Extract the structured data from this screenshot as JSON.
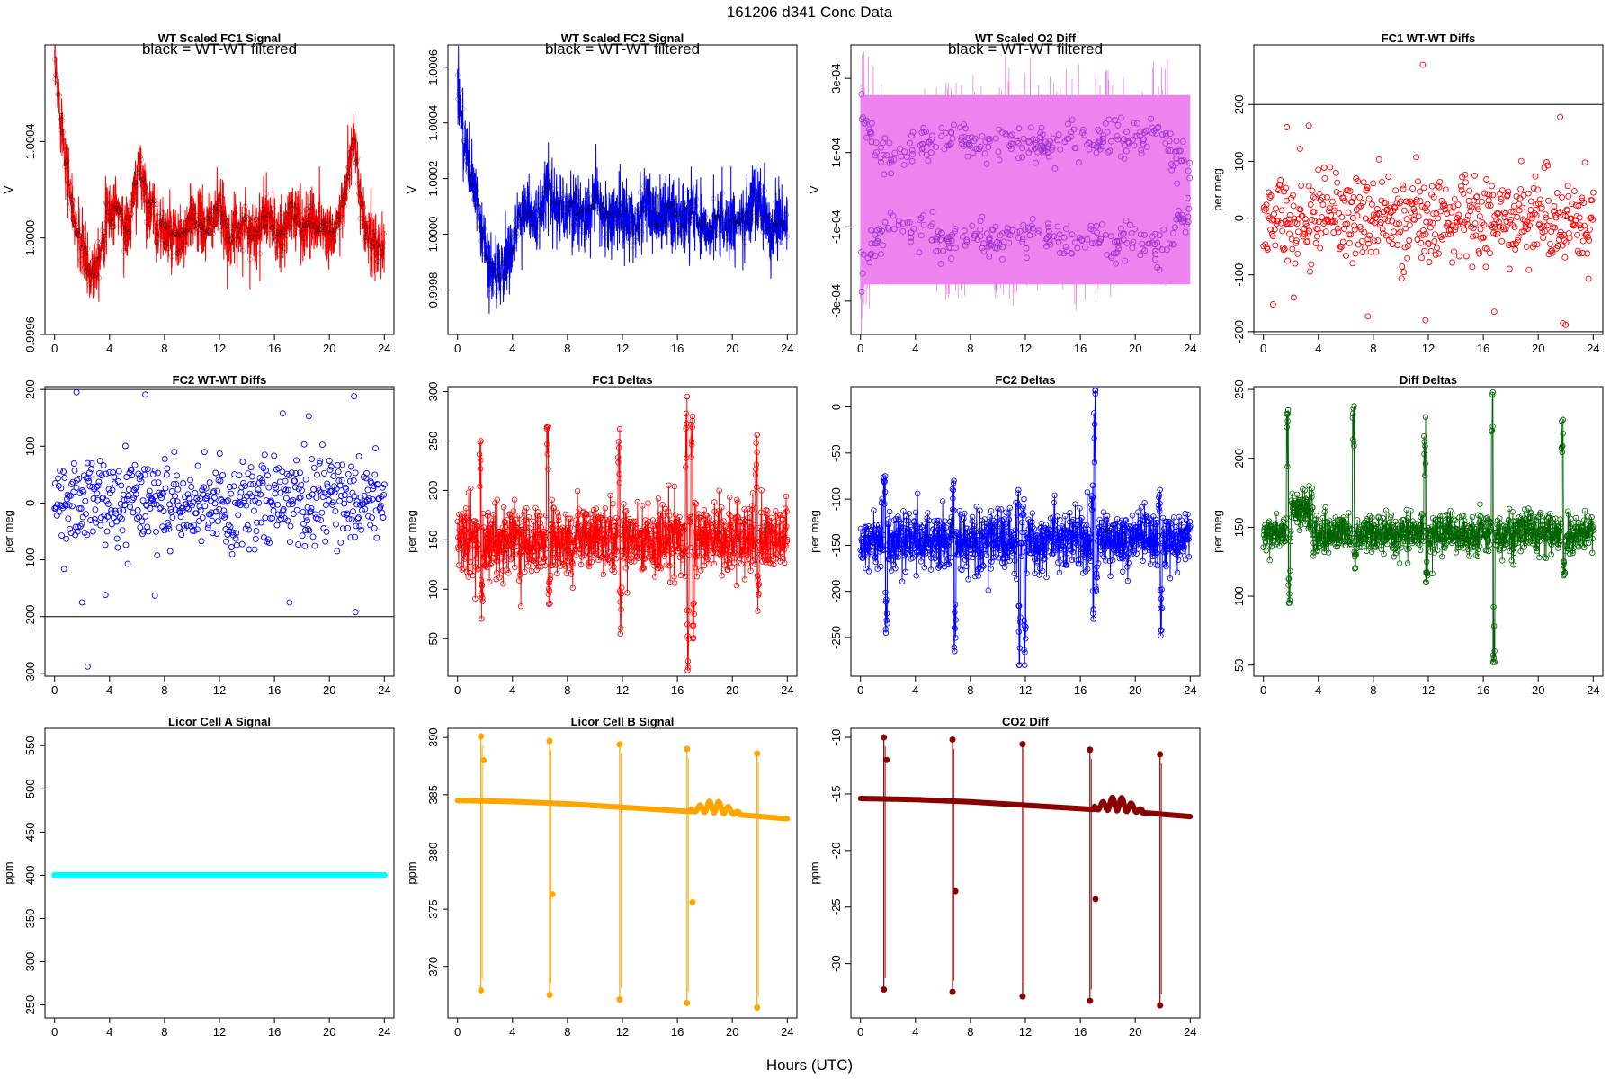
{
  "page": {
    "title": "161206   d341   Conc Data",
    "xlabel": "Hours (UTC)"
  },
  "chart_data": [
    {
      "id": "fc1-signal",
      "type": "line",
      "title": "WT Scaled FC1 Signal",
      "subtitle": "black = WT-WT filtered",
      "ylabel": "V",
      "color": "#ff0000",
      "overlay_color": "#000000",
      "style": "dense-noise",
      "xlim": [
        -0.7,
        24.7
      ],
      "ylim": [
        0.9996,
        1.0008
      ],
      "x_ticks": [
        0,
        4,
        8,
        12,
        16,
        20,
        24
      ],
      "y_ticks": [
        0.9996,
        1.0,
        1.0004
      ],
      "y_tick_labels": [
        "0.9996",
        "1.0000",
        "1.0004"
      ],
      "series_x": [
        0,
        0.3,
        0.8,
        1.3,
        2,
        2.6,
        3.2,
        3.8,
        4.5,
        5.3,
        6.2,
        6.9,
        7.6,
        8.5,
        9.3,
        10.2,
        11,
        11.9,
        12.8,
        13.7,
        14.6,
        15.5,
        16.4,
        17.3,
        18.2,
        19.1,
        20,
        20.9,
        21.8,
        22.4,
        23,
        23.5,
        24
      ],
      "series_y": [
        1.0007,
        1.00058,
        1.00035,
        1.0001,
        0.99995,
        0.99985,
        0.99993,
        1.00008,
        1.00014,
        1.00002,
        1.0003,
        1.00012,
        1.00005,
        1.0,
        0.99998,
        1.0001,
        1.00003,
        1.00012,
        1.0,
        1.00006,
        1.00002,
        1.0001,
        0.99998,
        1.00012,
        1.00004,
        1.00008,
        1.00001,
        1.0001,
        1.00042,
        1.00005,
        1.0,
        0.99994,
        0.99998
      ],
      "noise": 0.00012
    },
    {
      "id": "fc2-signal",
      "type": "line",
      "title": "WT Scaled FC2 Signal",
      "subtitle": "black = WT-WT filtered",
      "ylabel": "V",
      "color": "#0000ff",
      "overlay_color": "#000000",
      "style": "dense-noise",
      "xlim": [
        -0.7,
        24.7
      ],
      "ylim": [
        0.99964,
        1.00068
      ],
      "x_ticks": [
        0,
        4,
        8,
        12,
        16,
        20,
        24
      ],
      "y_ticks": [
        0.9998,
        1.0,
        1.0002,
        1.0004,
        1.0006
      ],
      "y_tick_labels": [
        "0.9998",
        "1.0000",
        "1.0002",
        "1.0004",
        "1.0006"
      ],
      "series_x": [
        0,
        0.3,
        0.8,
        1.5,
        2.2,
        2.8,
        3.4,
        4.2,
        5,
        5.8,
        6.6,
        7.4,
        8.3,
        9.2,
        10.1,
        11,
        11.9,
        12.8,
        13.7,
        14.6,
        15.5,
        16.4,
        17.3,
        18.2,
        19.1,
        20,
        20.9,
        21.8,
        22.6,
        23.3,
        24
      ],
      "series_y": [
        1.00055,
        1.0004,
        1.00025,
        1.00008,
        0.9999,
        0.99985,
        0.99988,
        1.0,
        1.0001,
        1.00004,
        1.00018,
        1.00008,
        1.0001,
        1.00006,
        1.00012,
        1.00004,
        1.0001,
        1.00002,
        1.00012,
        1.00005,
        1.0001,
        1.00004,
        1.00008,
        1.00003,
        1.00006,
        1.00002,
        1.00005,
        1.00014,
        1.00002,
        1.00003,
        1.00004
      ],
      "noise": 0.00011
    },
    {
      "id": "o2-diff",
      "type": "line",
      "title": "WT Scaled O2 Diff",
      "subtitle": "black = WT-WT filtered",
      "ylabel": "V",
      "color": "#ee82ee",
      "overlay_color": "#9932cc",
      "style": "band",
      "xlim": [
        -0.7,
        24.7
      ],
      "ylim": [
        -0.00039,
        0.00039
      ],
      "x_ticks": [
        0,
        4,
        8,
        12,
        16,
        20,
        24
      ],
      "y_ticks": [
        -0.0003,
        -0.0001,
        0.0001,
        0.0003
      ],
      "y_tick_labels": [
        "-3e-04",
        "-1e-04",
        "1e-04",
        "3e-04"
      ],
      "series_x": [
        0,
        0.4,
        1,
        2,
        3,
        4,
        5,
        6,
        7,
        8,
        9,
        10,
        11,
        12,
        13,
        14,
        15,
        16,
        17,
        18,
        19,
        20,
        21,
        22,
        23,
        24
      ],
      "series_y": [
        0.0003,
        0.00024,
        0.00018,
        0.00012,
        0.00013,
        0.00016,
        0.00015,
        0.00019,
        0.0002,
        0.00017,
        0.00016,
        0.00019,
        0.00018,
        0.00015,
        0.00017,
        0.00016,
        0.00019,
        0.00018,
        0.00016,
        0.0002,
        0.00018,
        0.00016,
        0.00019,
        0.00021,
        0.00012,
        0.0001
      ],
      "noise": 5e-05
    },
    {
      "id": "fc1-wtwt",
      "type": "scatter",
      "title": "FC1 WT-WT Diffs",
      "ylabel": "per meg",
      "color": "#ff0000",
      "style": "scatter",
      "xlim": [
        -0.7,
        24.7
      ],
      "ylim": [
        -205,
        305
      ],
      "x_ticks": [
        0,
        4,
        8,
        12,
        16,
        20,
        24
      ],
      "y_ticks": [
        -200,
        -100,
        0,
        100,
        200
      ],
      "y_tick_labels": [
        "-200",
        "-100",
        "0",
        "100",
        "200"
      ],
      "hlines": [
        200,
        -200
      ],
      "count": 560,
      "spread": 38,
      "outliers": [
        [
          11.6,
          270
        ],
        [
          21.6,
          178
        ],
        [
          1.7,
          160
        ],
        [
          3.3,
          163
        ],
        [
          2.2,
          -140
        ],
        [
          0.7,
          -152
        ],
        [
          11.8,
          -180
        ],
        [
          21.8,
          -185
        ],
        [
          22.0,
          -188
        ],
        [
          7.6,
          -173
        ],
        [
          16.8,
          -165
        ]
      ]
    },
    {
      "id": "fc2-wtwt",
      "type": "scatter",
      "title": "FC2 WT-WT Diffs",
      "ylabel": "per meg",
      "color": "#0000ff",
      "style": "scatter",
      "xlim": [
        -0.7,
        24.7
      ],
      "ylim": [
        -305,
        205
      ],
      "x_ticks": [
        0,
        4,
        8,
        12,
        16,
        20,
        24
      ],
      "y_ticks": [
        -300,
        -200,
        -100,
        0,
        100,
        200
      ],
      "y_tick_labels": [
        "-300",
        "-200",
        "-100",
        "0",
        "100",
        "200"
      ],
      "hlines": [
        200,
        -200
      ],
      "count": 560,
      "spread": 38,
      "outliers": [
        [
          1.6,
          195
        ],
        [
          6.6,
          191
        ],
        [
          21.8,
          188
        ],
        [
          16.6,
          158
        ],
        [
          18.5,
          153
        ],
        [
          2.4,
          -288
        ],
        [
          21.9,
          -192
        ],
        [
          2.0,
          -175
        ],
        [
          17.1,
          -175
        ],
        [
          7.3,
          -163
        ],
        [
          3.7,
          -162
        ]
      ]
    },
    {
      "id": "fc1-deltas",
      "type": "line",
      "title": "FC1 Deltas",
      "ylabel": "per meg",
      "color": "#ff0000",
      "style": "points-lines",
      "xlim": [
        -0.7,
        24.7
      ],
      "ylim": [
        12,
        305
      ],
      "x_ticks": [
        0,
        4,
        8,
        12,
        16,
        20,
        24
      ],
      "y_ticks": [
        50,
        100,
        150,
        200,
        250,
        300
      ],
      "y_tick_labels": [
        "50",
        "100",
        "150",
        "200",
        "250",
        "300"
      ],
      "base": 150,
      "noise": 18,
      "spikes": [
        [
          1.7,
          250,
          70
        ],
        [
          6.6,
          265,
          85
        ],
        [
          11.8,
          262,
          55
        ],
        [
          16.7,
          295,
          18
        ],
        [
          17.1,
          275,
          50
        ],
        [
          21.8,
          256,
          78
        ]
      ]
    },
    {
      "id": "fc2-deltas",
      "type": "line",
      "title": "FC2 Deltas",
      "ylabel": "per meg",
      "color": "#0000ff",
      "style": "points-lines",
      "xlim": [
        -0.7,
        24.7
      ],
      "ylim": [
        -292,
        22
      ],
      "x_ticks": [
        0,
        4,
        8,
        12,
        16,
        20,
        24
      ],
      "y_ticks": [
        -250,
        -200,
        -150,
        -100,
        -50,
        0
      ],
      "y_tick_labels": [
        "-250",
        "-200",
        "-150",
        "-100",
        "-50",
        "0"
      ],
      "base": -145,
      "noise": 16,
      "spikes": [
        [
          1.8,
          -75,
          -245
        ],
        [
          6.8,
          -80,
          -265
        ],
        [
          11.5,
          -90,
          -280
        ],
        [
          11.9,
          -100,
          -280
        ],
        [
          16.9,
          -85,
          -230
        ],
        [
          17.1,
          18,
          -200
        ],
        [
          21.8,
          -90,
          -248
        ]
      ]
    },
    {
      "id": "diff-deltas",
      "type": "line",
      "title": "Diff Deltas",
      "ylabel": "per meg",
      "color": "#006400",
      "style": "points-lines",
      "xlim": [
        -0.7,
        24.7
      ],
      "ylim": [
        42,
        252
      ],
      "x_ticks": [
        0,
        4,
        8,
        12,
        16,
        20,
        24
      ],
      "y_ticks": [
        50,
        100,
        150,
        200,
        250
      ],
      "y_tick_labels": [
        "50",
        "100",
        "150",
        "200",
        "250"
      ],
      "base": 145,
      "noise": 7,
      "spikes": [
        [
          1.8,
          235,
          95
        ],
        [
          6.6,
          238,
          120
        ],
        [
          11.8,
          230,
          110
        ],
        [
          16.7,
          248,
          52
        ],
        [
          21.8,
          228,
          115
        ]
      ]
    },
    {
      "id": "licor-a",
      "type": "line",
      "title": "Licor Cell A Signal",
      "ylabel": "ppm",
      "color": "#00ffff",
      "style": "flat",
      "xlim": [
        -0.7,
        24.7
      ],
      "ylim": [
        235,
        570
      ],
      "x_ticks": [
        0,
        4,
        8,
        12,
        16,
        20,
        24
      ],
      "y_ticks": [
        250,
        300,
        350,
        400,
        450,
        500,
        550
      ],
      "y_tick_labels": [
        "250",
        "300",
        "350",
        "400",
        "450",
        "500",
        "550"
      ],
      "value": 400
    },
    {
      "id": "licor-b",
      "type": "line",
      "title": "Licor Cell B Signal",
      "ylabel": "ppm",
      "color": "#ffa500",
      "style": "trend-spikes",
      "xlim": [
        -0.7,
        24.7
      ],
      "ylim": [
        365.5,
        390.8
      ],
      "x_ticks": [
        0,
        4,
        8,
        12,
        16,
        20,
        24
      ],
      "y_ticks": [
        370,
        375,
        380,
        385,
        390
      ],
      "y_tick_labels": [
        "370",
        "375",
        "380",
        "385",
        "390"
      ],
      "trend": [
        [
          0,
          384.5
        ],
        [
          4,
          384.4
        ],
        [
          8,
          384.2
        ],
        [
          12,
          383.9
        ],
        [
          16,
          383.6
        ],
        [
          20,
          383.3
        ],
        [
          24,
          382.9
        ]
      ],
      "spikes": [
        [
          1.7,
          390.1,
          367.9
        ],
        [
          6.7,
          389.7,
          367.5
        ],
        [
          11.8,
          389.4,
          367.1
        ],
        [
          16.7,
          389.0,
          366.8
        ],
        [
          21.8,
          388.6,
          366.4
        ]
      ],
      "bumps": [
        [
          1.9,
          388.0
        ],
        [
          6.9,
          376.3
        ],
        [
          17.1,
          375.6
        ],
        [
          16.9,
          383.6
        ]
      ]
    },
    {
      "id": "co2-diff",
      "type": "line",
      "title": "CO2 Diff",
      "ylabel": "ppm",
      "color": "#8b0000",
      "style": "trend-spikes",
      "xlim": [
        -0.7,
        24.7
      ],
      "ylim": [
        -34.8,
        -9.2
      ],
      "x_ticks": [
        0,
        4,
        8,
        12,
        16,
        20,
        24
      ],
      "y_ticks": [
        -30,
        -25,
        -20,
        -15,
        -10
      ],
      "y_tick_labels": [
        "-30",
        "-25",
        "-20",
        "-15",
        "-10"
      ],
      "trend": [
        [
          0,
          -15.4
        ],
        [
          4,
          -15.5
        ],
        [
          8,
          -15.7
        ],
        [
          12,
          -16.0
        ],
        [
          16,
          -16.3
        ],
        [
          20,
          -16.6
        ],
        [
          24,
          -17.0
        ]
      ],
      "spikes": [
        [
          1.7,
          -10.0,
          -32.3
        ],
        [
          6.7,
          -10.2,
          -32.5
        ],
        [
          11.8,
          -10.6,
          -32.9
        ],
        [
          16.7,
          -11.1,
          -33.3
        ],
        [
          21.8,
          -11.5,
          -33.7
        ]
      ],
      "bumps": [
        [
          1.9,
          -12.0
        ],
        [
          6.9,
          -23.6
        ],
        [
          17.1,
          -24.3
        ]
      ]
    }
  ]
}
